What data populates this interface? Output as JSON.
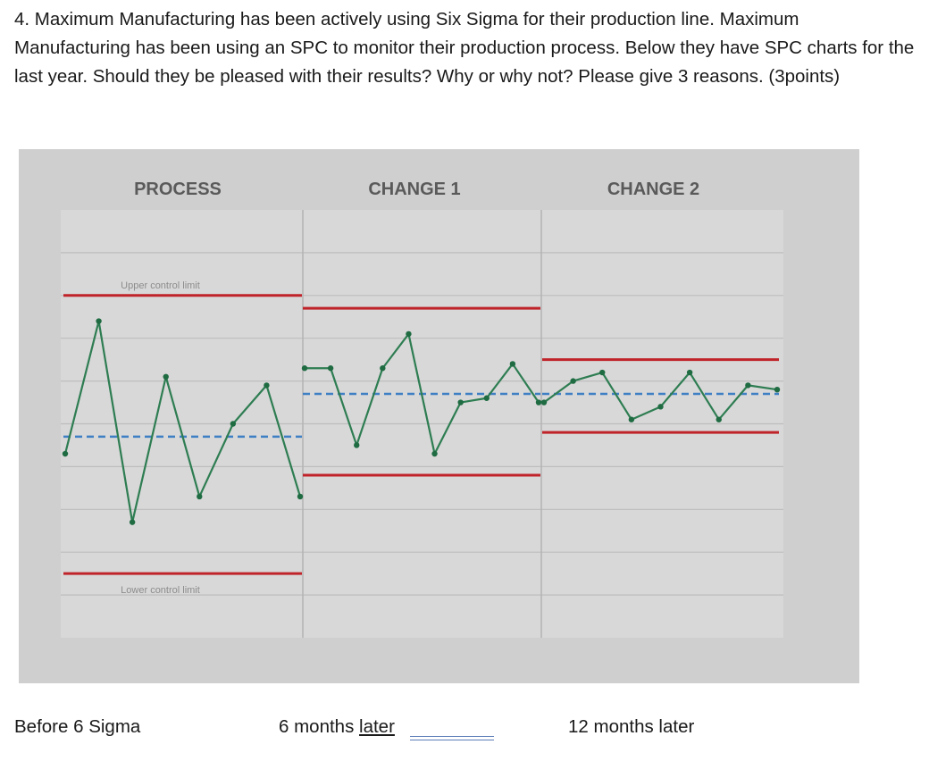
{
  "question": {
    "text": "4. Maximum Manufacturing has been actively using Six Sigma for their production line.   Maximum Manufacturing has been using an SPC to monitor their production process. Below they have SPC charts for the last year.  Should they be pleased with their results?  Why or why not? Please give 3 reasons. (3points)"
  },
  "chart_data": {
    "type": "line",
    "title": "",
    "xlabel": "",
    "ylabel": "",
    "grid": true,
    "ylim": [
      0,
      10
    ],
    "panels": [
      {
        "name": "PROCESS",
        "ucl": 8.0,
        "center": 4.7,
        "lcl": 1.5,
        "ucl_label": "Upper control limit",
        "lcl_label": "Lower control limit",
        "values": [
          4.3,
          7.4,
          2.7,
          6.1,
          3.3,
          5.0,
          5.9,
          3.3
        ]
      },
      {
        "name": "CHANGE 1",
        "ucl": 7.7,
        "center": 5.7,
        "lcl": 3.8,
        "values": [
          6.3,
          6.3,
          4.5,
          6.3,
          7.1,
          4.3,
          5.5,
          5.6,
          6.4,
          5.5
        ]
      },
      {
        "name": "CHANGE 2",
        "ucl": 6.5,
        "center": 5.7,
        "lcl": 4.8,
        "values": [
          5.5,
          6.0,
          6.2,
          5.1,
          5.4,
          6.2,
          5.1,
          5.9,
          5.8
        ]
      }
    ]
  },
  "captions": {
    "before": "Before 6 Sigma",
    "six_months_prefix": "6 months ",
    "six_months_later": "later",
    "twelve": "12 months later"
  }
}
